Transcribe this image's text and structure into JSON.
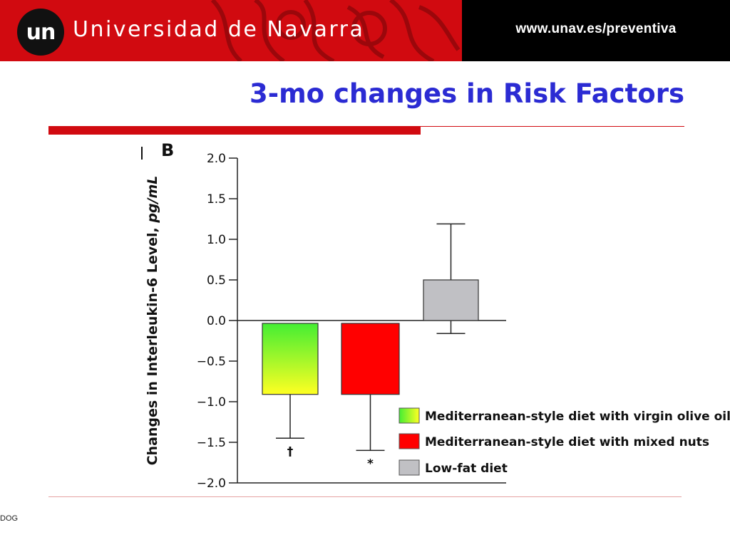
{
  "header": {
    "logo_text": "un",
    "university_name": "Universidad de Navarra",
    "url": "www.unav.es/preventiva",
    "colors": {
      "brand_red": "#d10a10",
      "black": "#000000"
    }
  },
  "slide": {
    "title": "3-mo changes in Risk Factors",
    "title_color": "#2b2bd3",
    "footer": "DOG"
  },
  "chart_data": {
    "type": "bar",
    "panel_label": "B",
    "ylabel": "Changes in Interleukin-6 Level, pg/mL",
    "ylim": [
      -2.0,
      2.0
    ],
    "yticks": [
      2.0,
      1.5,
      1.0,
      0.5,
      0.0,
      -0.5,
      -1.0,
      -1.5,
      -2.0
    ],
    "ytick_labels": [
      "2.0",
      "1.5",
      "1.0",
      "0.5",
      "0.0",
      "−0.5",
      "−1.0",
      "−1.5",
      "−2.0"
    ],
    "grid": false,
    "legend_position": "bottom-right",
    "series": [
      {
        "name": "Mediterranean-style diet with virgin olive oil",
        "value": -0.91,
        "error_bar_end": -1.45,
        "annotation": "†",
        "color": "gradient-green-yellow"
      },
      {
        "name": "Mediterranean-style diet with mixed nuts",
        "value": -0.91,
        "error_bar_end": -1.6,
        "annotation": "*",
        "color": "#ff0000"
      },
      {
        "name": "Low-fat diet",
        "value": 0.5,
        "error_bar_high": 1.19,
        "error_bar_low": -0.16,
        "annotation": "",
        "color": "#c0c0c4"
      }
    ]
  }
}
